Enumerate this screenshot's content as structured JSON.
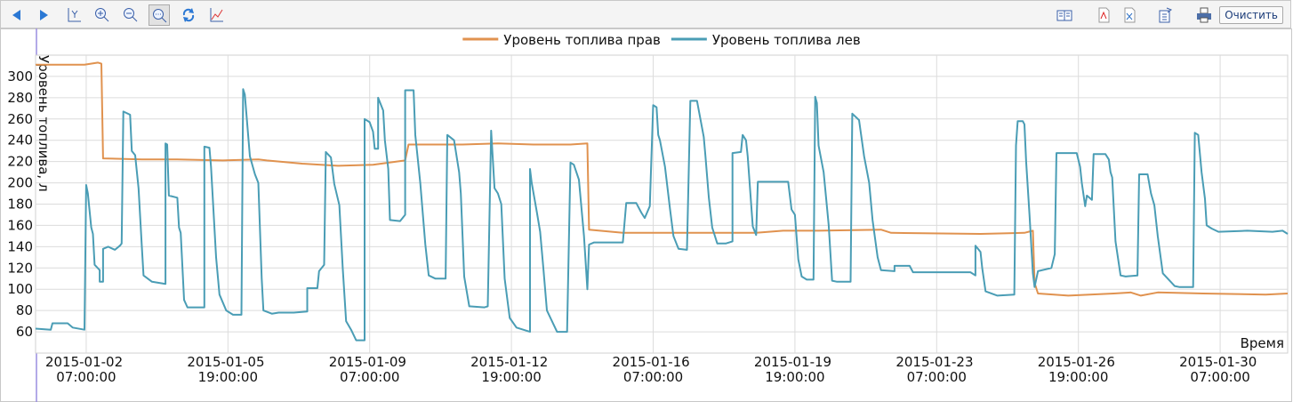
{
  "toolbar": {
    "clear_button": "Очистить"
  },
  "chart_data": {
    "type": "line",
    "y_label": "Уровень топлива, л",
    "x_label": "Время",
    "ylim": [
      40,
      320
    ],
    "yticks": [
      60,
      80,
      100,
      120,
      140,
      160,
      180,
      200,
      220,
      240,
      260,
      280,
      300
    ],
    "xlim": [
      "2015-01-01 01:00:00",
      "2015-01-31 23:00:00"
    ],
    "xticks": [
      "2015-01-02 07:00:00",
      "2015-01-05 19:00:00",
      "2015-01-09 07:00:00",
      "2015-01-12 19:00:00",
      "2015-01-16 07:00:00",
      "2015-01-19 19:00:00",
      "2015-01-23 07:00:00",
      "2015-01-26 19:00:00",
      "2015-01-30 07:00:00"
    ],
    "grid": true,
    "legend": "top",
    "series": [
      {
        "name": "Уровень топлива прав",
        "color": "#e0924f",
        "x": [
          "2015-01-01 01:00:00",
          "2015-01-02 06:00:00",
          "2015-01-02 14:00:00",
          "2015-01-02 16:00:00",
          "2015-01-02 17:00:00",
          "2015-01-03 16:00:00",
          "2015-01-04 13:00:00",
          "2015-01-05 16:00:00",
          "2015-01-06 13:00:00",
          "2015-01-06 18:00:00",
          "2015-01-07 15:00:00",
          "2015-01-08 12:00:00",
          "2015-01-09 09:00:00",
          "2015-01-10 04:00:00",
          "2015-01-10 06:00:00",
          "2015-01-11 14:00:00",
          "2015-01-12 11:00:00",
          "2015-01-13 08:00:00",
          "2015-01-14 06:00:00",
          "2015-01-14 16:00:00",
          "2015-01-14 17:00:00",
          "2015-01-15 13:00:00",
          "2015-01-16 21:00:00",
          "2015-01-18 20:00:00",
          "2015-01-19 12:00:00",
          "2015-01-20 09:00:00",
          "2015-01-21 22:00:00",
          "2015-01-22 04:00:00",
          "2015-01-24 09:00:00",
          "2015-01-25 11:00:00",
          "2015-01-25 16:00:00",
          "2015-01-25 17:00:00",
          "2015-01-25 19:00:00",
          "2015-01-26 13:00:00",
          "2015-01-27 16:00:00",
          "2015-01-28 02:00:00",
          "2015-01-28 08:00:00",
          "2015-01-28 18:00:00",
          "2015-01-29 21:00:00",
          "2015-01-31 10:00:00",
          "2015-01-31 23:00:00"
        ],
        "values": [
          311,
          311,
          313,
          312,
          223,
          222,
          222,
          221,
          222,
          221,
          218,
          216,
          217,
          221,
          236,
          236,
          237,
          236,
          236,
          237,
          156,
          153,
          153,
          153,
          155,
          155,
          156,
          153,
          152,
          153,
          155,
          106,
          96,
          94,
          96,
          97,
          94,
          97,
          96,
          95,
          96
        ]
      },
      {
        "name": "Уровень топлива лев",
        "color": "#4a9db5",
        "x": [
          "2015-01-01 01:00:00",
          "2015-01-01 10:00:00",
          "2015-01-01 11:00:00",
          "2015-01-01 20:00:00",
          "2015-01-01 23:00:00",
          "2015-01-02 06:00:00",
          "2015-01-02 07:00:00",
          "2015-01-02 08:00:00",
          "2015-01-02 10:00:00",
          "2015-01-02 11:00:00",
          "2015-01-02 12:00:00",
          "2015-01-02 15:00:00",
          "2015-01-02 15:00:00",
          "2015-01-02 17:00:00",
          "2015-01-02 17:00:00",
          "2015-01-02 20:00:00",
          "2015-01-03 00:00:00",
          "2015-01-03 03:00:00",
          "2015-01-03 04:00:00",
          "2015-01-03 05:00:00",
          "2015-01-03 09:00:00",
          "2015-01-03 10:00:00",
          "2015-01-03 12:00:00",
          "2015-01-03 14:00:00",
          "2015-01-03 16:00:00",
          "2015-01-03 17:00:00",
          "2015-01-03 22:00:00",
          "2015-01-04 06:00:00",
          "2015-01-04 06:00:00",
          "2015-01-04 07:00:00",
          "2015-01-04 08:00:00",
          "2015-01-04 13:00:00",
          "2015-01-04 14:00:00",
          "2015-01-04 15:00:00",
          "2015-01-04 17:00:00",
          "2015-01-04 19:00:00",
          "2015-01-05 05:00:00",
          "2015-01-05 05:00:00",
          "2015-01-05 08:00:00",
          "2015-01-05 09:00:00",
          "2015-01-05 12:00:00",
          "2015-01-05 14:00:00",
          "2015-01-05 18:00:00",
          "2015-01-05 22:00:00",
          "2015-01-06 03:00:00",
          "2015-01-06 04:00:00",
          "2015-01-06 05:00:00",
          "2015-01-06 08:00:00",
          "2015-01-06 11:00:00",
          "2015-01-06 13:00:00",
          "2015-01-06 15:00:00",
          "2015-01-06 16:00:00",
          "2015-01-06 21:00:00",
          "2015-01-07 01:00:00",
          "2015-01-07 10:00:00",
          "2015-01-07 18:00:00",
          "2015-01-07 18:00:00",
          "2015-01-08 00:00:00",
          "2015-01-08 01:00:00",
          "2015-01-08 04:00:00",
          "2015-01-08 05:00:00",
          "2015-01-08 08:00:00",
          "2015-01-08 10:00:00",
          "2015-01-08 13:00:00",
          "2015-01-08 15:00:00",
          "2015-01-08 17:00:00",
          "2015-01-08 20:00:00",
          "2015-01-08 23:00:00",
          "2015-01-09 04:00:00",
          "2015-01-09 04:00:00",
          "2015-01-09 07:00:00",
          "2015-01-09 09:00:00",
          "2015-01-09 10:00:00",
          "2015-01-09 12:00:00",
          "2015-01-09 12:00:00",
          "2015-01-09 15:00:00",
          "2015-01-09 16:00:00",
          "2015-01-09 18:00:00",
          "2015-01-09 19:00:00",
          "2015-01-10 01:00:00",
          "2015-01-10 04:00:00",
          "2015-01-10 04:00:00",
          "2015-01-10 09:00:00",
          "2015-01-10 10:00:00",
          "2015-01-10 13:00:00",
          "2015-01-10 16:00:00",
          "2015-01-10 18:00:00",
          "2015-01-10 22:00:00",
          "2015-01-11 04:00:00",
          "2015-01-11 05:00:00",
          "2015-01-11 09:00:00",
          "2015-01-11 12:00:00",
          "2015-01-11 13:00:00",
          "2015-01-11 15:00:00",
          "2015-01-11 18:00:00",
          "2015-01-12 03:00:00",
          "2015-01-12 05:00:00",
          "2015-01-12 07:00:00",
          "2015-01-12 09:00:00",
          "2015-01-12 11:00:00",
          "2015-01-12 13:00:00",
          "2015-01-12 15:00:00",
          "2015-01-12 18:00:00",
          "2015-01-12 22:00:00",
          "2015-01-13 06:00:00",
          "2015-01-13 06:00:00",
          "2015-01-13 07:00:00",
          "2015-01-13 10:00:00",
          "2015-01-13 12:00:00",
          "2015-01-13 14:00:00",
          "2015-01-13 16:00:00",
          "2015-01-13 22:00:00",
          "2015-01-14 04:00:00",
          "2015-01-14 06:00:00",
          "2015-01-14 08:00:00",
          "2015-01-14 11:00:00",
          "2015-01-14 14:00:00",
          "2015-01-14 16:00:00",
          "2015-01-14 17:00:00",
          "2015-01-14 20:00:00",
          "2015-01-15 13:00:00",
          "2015-01-15 15:00:00",
          "2015-01-15 21:00:00",
          "2015-01-16 00:00:00",
          "2015-01-16 02:00:00",
          "2015-01-16 05:00:00",
          "2015-01-16 07:00:00",
          "2015-01-16 09:00:00",
          "2015-01-16 10:00:00",
          "2015-01-16 11:00:00",
          "2015-01-16 14:00:00",
          "2015-01-16 17:00:00",
          "2015-01-16 19:00:00",
          "2015-01-16 22:00:00",
          "2015-01-17 03:00:00",
          "2015-01-17 05:00:00",
          "2015-01-17 09:00:00",
          "2015-01-17 13:00:00",
          "2015-01-17 14:00:00",
          "2015-01-17 16:00:00",
          "2015-01-17 18:00:00",
          "2015-01-17 21:00:00",
          "2015-01-18 02:00:00",
          "2015-01-18 06:00:00",
          "2015-01-18 06:00:00",
          "2015-01-18 11:00:00",
          "2015-01-18 12:00:00",
          "2015-01-18 14:00:00",
          "2015-01-18 15:00:00",
          "2015-01-18 18:00:00",
          "2015-01-18 20:00:00",
          "2015-01-18 21:00:00",
          "2015-01-19 15:00:00",
          "2015-01-19 17:00:00",
          "2015-01-19 19:00:00",
          "2015-01-19 21:00:00",
          "2015-01-19 23:00:00",
          "2015-01-20 02:00:00",
          "2015-01-20 06:00:00",
          "2015-01-20 07:00:00",
          "2015-01-20 08:00:00",
          "2015-01-20 09:00:00",
          "2015-01-20 12:00:00",
          "2015-01-20 15:00:00",
          "2015-01-20 17:00:00",
          "2015-01-20 20:00:00",
          "2015-01-21 04:00:00",
          "2015-01-21 05:00:00",
          "2015-01-21 09:00:00",
          "2015-01-21 12:00:00",
          "2015-01-21 15:00:00",
          "2015-01-21 17:00:00",
          "2015-01-21 20:00:00",
          "2015-01-21 22:00:00",
          "2015-01-22 06:00:00",
          "2015-01-22 06:00:00",
          "2015-01-22 15:00:00",
          "2015-01-22 17:00:00",
          "2015-01-24 03:00:00",
          "2015-01-24 06:00:00",
          "2015-01-24 06:00:00",
          "2015-01-24 09:00:00",
          "2015-01-24 10:00:00",
          "2015-01-24 12:00:00",
          "2015-01-24 19:00:00",
          "2015-01-25 05:00:00",
          "2015-01-25 06:00:00",
          "2015-01-25 07:00:00",
          "2015-01-25 10:00:00",
          "2015-01-25 11:00:00",
          "2015-01-25 12:00:00",
          "2015-01-25 14:00:00",
          "2015-01-25 16:00:00",
          "2015-01-25 17:00:00",
          "2015-01-25 19:00:00",
          "2015-01-26 03:00:00",
          "2015-01-26 05:00:00",
          "2015-01-26 06:00:00",
          "2015-01-26 18:00:00",
          "2015-01-26 20:00:00",
          "2015-01-26 21:00:00",
          "2015-01-26 23:00:00",
          "2015-01-27 00:00:00",
          "2015-01-27 03:00:00",
          "2015-01-27 04:00:00",
          "2015-01-27 11:00:00",
          "2015-01-27 13:00:00",
          "2015-01-27 14:00:00",
          "2015-01-27 15:00:00",
          "2015-01-27 17:00:00",
          "2015-01-27 20:00:00",
          "2015-01-27 23:00:00",
          "2015-01-28 06:00:00",
          "2015-01-28 07:00:00",
          "2015-01-28 12:00:00",
          "2015-01-28 14:00:00",
          "2015-01-28 16:00:00",
          "2015-01-28 18:00:00",
          "2015-01-28 21:00:00",
          "2015-01-29 04:00:00",
          "2015-01-29 07:00:00",
          "2015-01-29 15:00:00",
          "2015-01-29 16:00:00",
          "2015-01-29 18:00:00",
          "2015-01-29 20:00:00",
          "2015-01-29 22:00:00",
          "2015-01-29 23:00:00",
          "2015-01-30 02:00:00",
          "2015-01-30 06:00:00",
          "2015-01-30 23:00:00",
          "2015-01-31 14:00:00",
          "2015-01-31 20:00:00",
          "2015-01-31 23:00:00"
        ],
        "values": [
          63,
          62,
          68,
          68,
          64,
          62,
          198,
          190,
          158,
          152,
          123,
          118,
          107,
          107,
          138,
          140,
          137,
          141,
          143,
          267,
          264,
          230,
          226,
          195,
          140,
          113,
          107,
          105,
          237,
          236,
          188,
          186,
          158,
          153,
          90,
          83,
          83,
          234,
          233,
          215,
          130,
          95,
          80,
          76,
          76,
          288,
          283,
          225,
          208,
          200,
          110,
          80,
          77,
          78,
          78,
          79,
          101,
          101,
          117,
          123,
          229,
          224,
          199,
          179,
          120,
          70,
          62,
          52,
          52,
          260,
          257,
          248,
          232,
          232,
          280,
          268,
          240,
          213,
          165,
          164,
          170,
          287,
          287,
          245,
          200,
          142,
          113,
          110,
          110,
          245,
          240,
          210,
          190,
          112,
          84,
          83,
          84,
          249,
          195,
          190,
          180,
          110,
          73,
          64,
          60,
          213,
          200,
          173,
          154,
          118,
          80,
          60,
          60,
          219,
          217,
          203,
          150,
          100,
          142,
          144,
          144,
          181,
          181,
          172,
          167,
          178,
          273,
          271,
          245,
          240,
          215,
          175,
          150,
          138,
          137,
          277,
          277,
          243,
          225,
          186,
          158,
          143,
          143,
          145,
          228,
          229,
          245,
          240,
          225,
          159,
          151,
          201,
          201,
          175,
          170,
          128,
          112,
          109,
          109,
          281,
          275,
          235,
          210,
          160,
          108,
          107,
          107,
          265,
          259,
          225,
          200,
          165,
          130,
          118,
          117,
          122,
          122,
          116,
          116,
          113,
          141,
          135,
          120,
          98,
          94,
          95,
          235,
          258,
          258,
          255,
          220,
          170,
          115,
          102,
          117,
          120,
          133,
          228,
          228,
          215,
          200,
          178,
          188,
          184,
          227,
          227,
          222,
          210,
          205,
          145,
          113,
          112,
          113,
          208,
          208,
          190,
          179,
          150,
          115,
          103,
          102,
          102,
          247,
          245,
          210,
          185,
          160,
          157,
          154,
          155,
          154,
          155,
          152
        ]
      }
    ]
  }
}
